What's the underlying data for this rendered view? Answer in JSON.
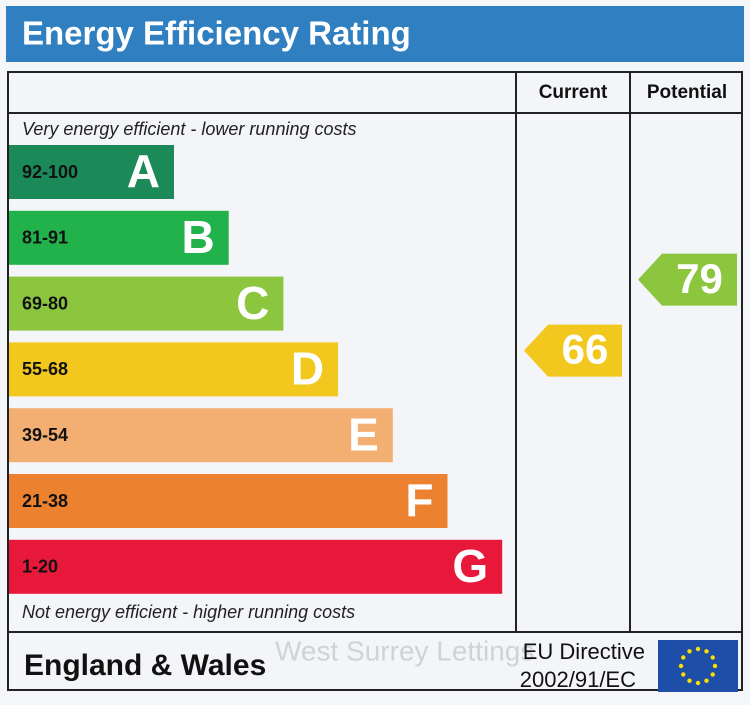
{
  "chart_data": {
    "type": "epc",
    "title": "Energy Efficiency Rating",
    "column_headers": [
      "Current",
      "Potential"
    ],
    "top_note": "Very energy efficient - lower running costs",
    "bottom_note": "Not energy efficient - higher running costs",
    "bands": [
      {
        "range": "92-100",
        "letter": "A",
        "color": "#1b8a58"
      },
      {
        "range": "81-91",
        "letter": "B",
        "color": "#22b24c"
      },
      {
        "range": "69-80",
        "letter": "C",
        "color": "#8cc63f"
      },
      {
        "range": "55-68",
        "letter": "D",
        "color": "#f2c81e"
      },
      {
        "range": "39-54",
        "letter": "E",
        "color": "#f3ae72"
      },
      {
        "range": "21-38",
        "letter": "F",
        "color": "#ec8130"
      },
      {
        "range": "1-20",
        "letter": "G",
        "color": "#e8183a"
      }
    ],
    "series": [
      {
        "name": "Current",
        "value": 66,
        "color": "#f2c81e"
      },
      {
        "name": "Potential",
        "value": 79,
        "color": "#8cc63f"
      }
    ],
    "footer": {
      "region": "England & Wales",
      "directive": [
        "EU Directive",
        "2002/91/EC"
      ],
      "watermark": "West Surrey Lettings"
    }
  }
}
